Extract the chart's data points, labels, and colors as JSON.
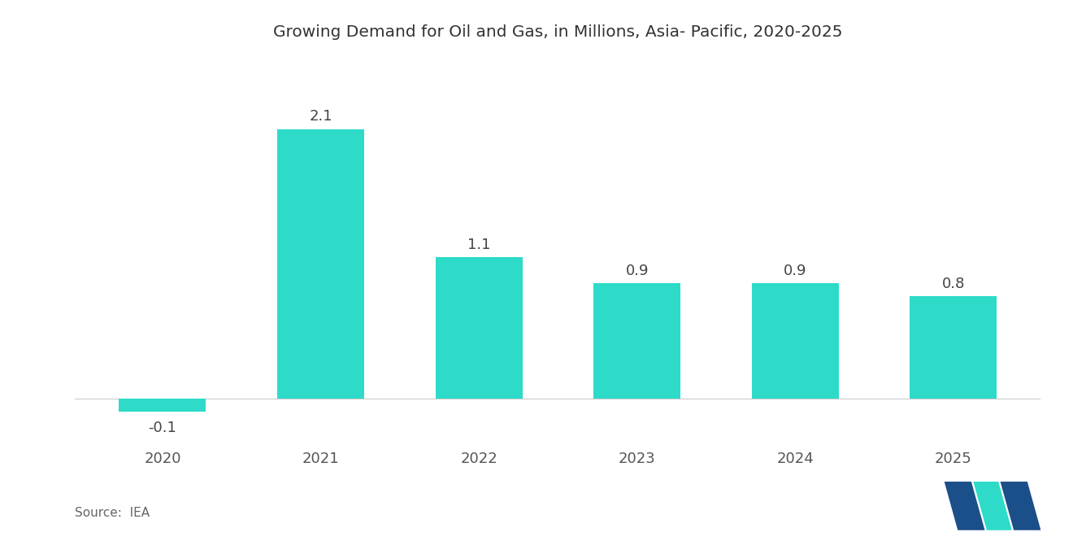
{
  "title": "Growing Demand for Oil and Gas, in Millions, Asia- Pacific, 2020-2025",
  "categories": [
    "2020",
    "2021",
    "2022",
    "2023",
    "2024",
    "2025"
  ],
  "values": [
    -0.1,
    2.1,
    1.1,
    0.9,
    0.9,
    0.8
  ],
  "bar_color": "#2DDBC8",
  "background_color": "#FFFFFF",
  "title_fontsize": 14.5,
  "label_fontsize": 13,
  "tick_fontsize": 13,
  "source_text": "Source:  IEA",
  "ylim": [
    -0.35,
    2.6
  ],
  "bar_width": 0.55,
  "logo_dark": "#1B4F8A",
  "logo_teal": "#2DDBC8"
}
